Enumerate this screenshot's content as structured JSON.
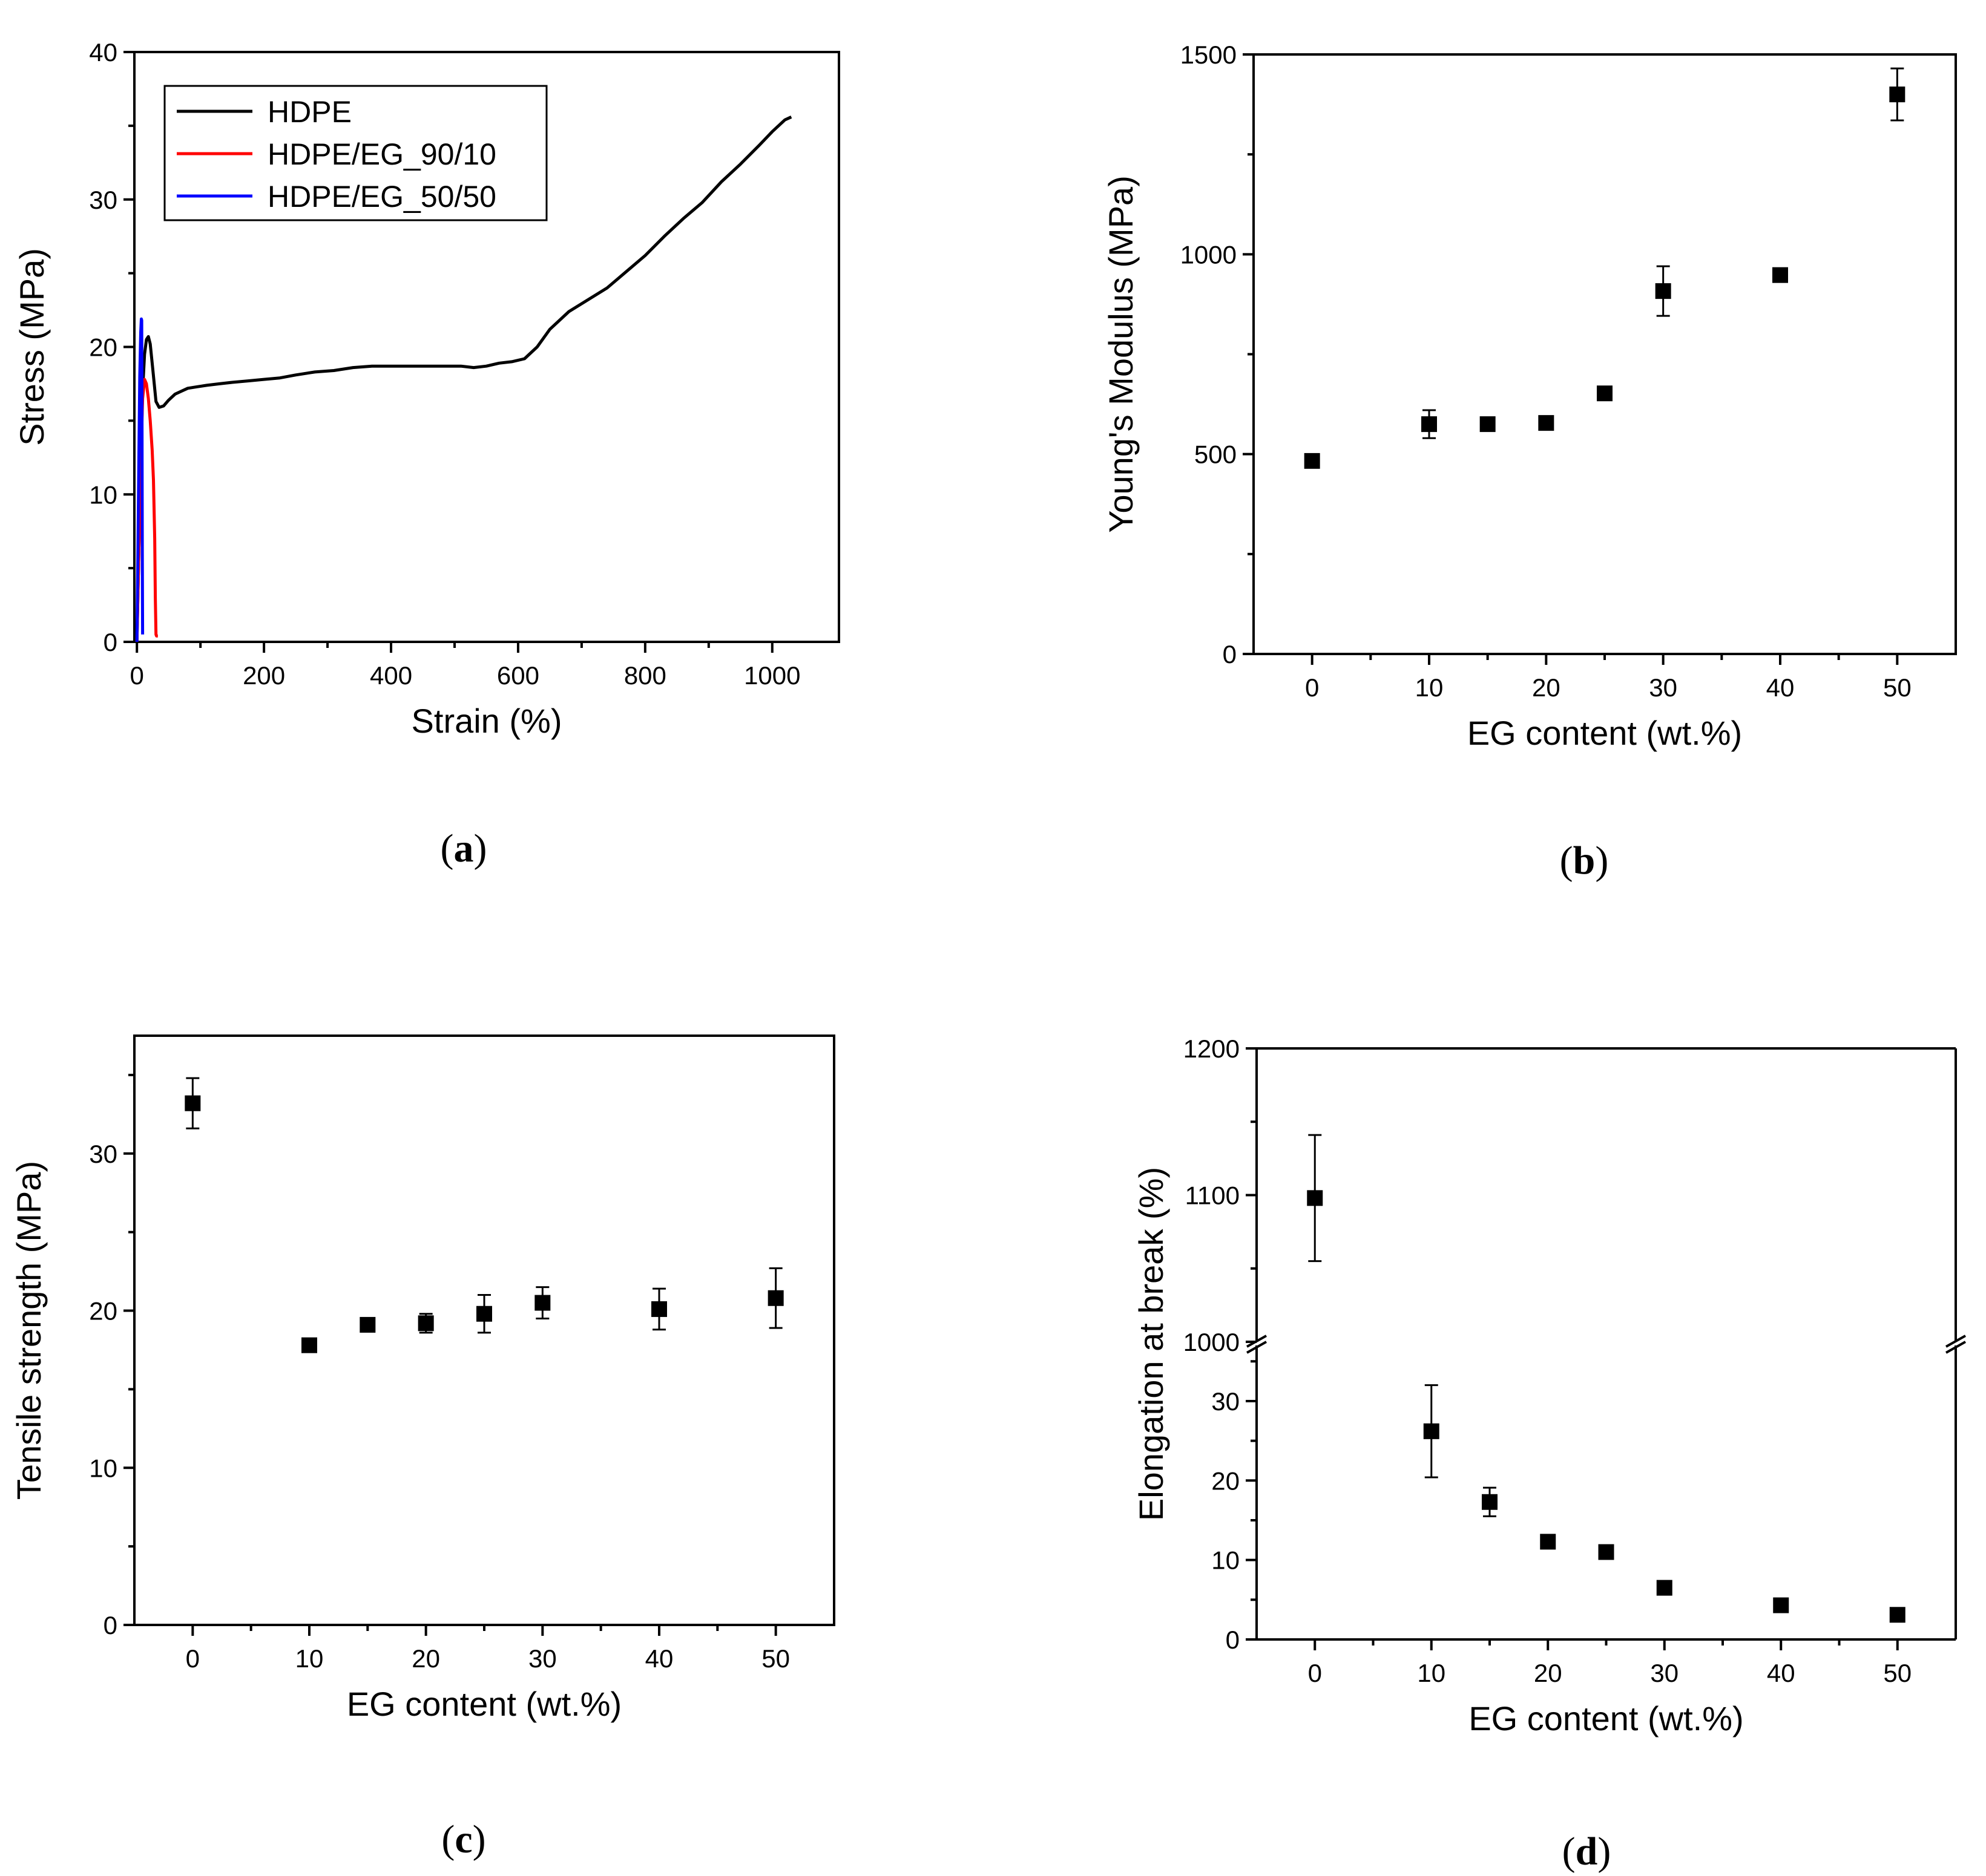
{
  "chart_data": [
    {
      "id": "a",
      "panel_label": "a",
      "type": "line",
      "xlabel": "Strain (%)",
      "ylabel": "Stress (MPa)",
      "xlim": [
        -4,
        1105
      ],
      "ylim": [
        0,
        40
      ],
      "xticks": [
        0,
        200,
        400,
        600,
        800,
        1000
      ],
      "yticks": [
        0,
        10,
        20,
        30,
        40
      ],
      "legend_position": "top-left",
      "series": [
        {
          "name": "HDPE",
          "color": "#000000",
          "x": [
            0,
            3,
            6,
            9,
            12,
            15,
            18,
            21,
            25,
            30,
            35,
            42,
            50,
            60,
            70,
            80,
            95,
            110,
            130,
            150,
            175,
            200,
            225,
            250,
            280,
            310,
            340,
            370,
            400,
            430,
            460,
            490,
            510,
            530,
            550,
            570,
            590,
            610,
            630,
            650,
            680,
            710,
            740,
            770,
            800,
            830,
            860,
            890,
            920,
            950,
            980,
            1000,
            1020,
            1030
          ],
          "y": [
            0,
            6,
            12,
            17,
            19.5,
            20.5,
            20.7,
            20.2,
            18.5,
            16.3,
            15.9,
            16.0,
            16.4,
            16.8,
            17.0,
            17.2,
            17.3,
            17.4,
            17.5,
            17.6,
            17.7,
            17.8,
            17.9,
            18.1,
            18.3,
            18.4,
            18.6,
            18.7,
            18.7,
            18.7,
            18.7,
            18.7,
            18.7,
            18.6,
            18.7,
            18.9,
            19.0,
            19.2,
            20.0,
            21.2,
            22.4,
            23.2,
            24.0,
            25.1,
            26.2,
            27.5,
            28.7,
            29.8,
            31.2,
            32.4,
            33.7,
            34.6,
            35.4,
            35.6
          ]
        },
        {
          "name": "HDPE/EG_90/10",
          "color": "#ff0000",
          "x": [
            0,
            3,
            6,
            9,
            12,
            15,
            18,
            21,
            24,
            26,
            28,
            29,
            30,
            31,
            33
          ],
          "y": [
            0,
            6,
            12,
            16.5,
            17.8,
            17.5,
            16.5,
            15.0,
            13.0,
            11.0,
            7.0,
            3.0,
            0.5,
            0.4,
            0.4
          ]
        },
        {
          "name": "HDPE/EG_50/50",
          "color": "#0000ff",
          "x": [
            0,
            1.5,
            3,
            4.5,
            6,
            7,
            7.5,
            8,
            8.5,
            9
          ],
          "y": [
            0,
            6,
            12,
            18,
            21,
            21.9,
            21.8,
            15,
            6,
            0.5
          ]
        }
      ]
    },
    {
      "id": "b",
      "panel_label": "b",
      "type": "scatter",
      "xlabel": "EG content (wt.%)",
      "ylabel": "Young's Modulus (MPa)",
      "xlim": [
        -5,
        55
      ],
      "ylim": [
        0,
        1500
      ],
      "xticks": [
        0,
        10,
        20,
        30,
        40,
        50
      ],
      "yticks": [
        0,
        500,
        1000,
        1500
      ],
      "minor_yticks": [
        250,
        750,
        1250
      ],
      "points": [
        {
          "x": 0,
          "y": 483,
          "err": 15
        },
        {
          "x": 10,
          "y": 575,
          "err": 35
        },
        {
          "x": 15,
          "y": 575,
          "err": 10
        },
        {
          "x": 20,
          "y": 578,
          "err": 10
        },
        {
          "x": 25,
          "y": 652,
          "err": 10
        },
        {
          "x": 30,
          "y": 908,
          "err": 62
        },
        {
          "x": 40,
          "y": 948,
          "err": 10
        },
        {
          "x": 50,
          "y": 1400,
          "err": 65
        }
      ]
    },
    {
      "id": "c",
      "panel_label": "c",
      "type": "scatter",
      "xlabel": "EG content (wt.%)",
      "ylabel": "Tensile strength (MPa)",
      "xlim": [
        -5,
        55
      ],
      "ylim": [
        0,
        37.5
      ],
      "xticks": [
        0,
        10,
        20,
        30,
        40,
        50
      ],
      "yticks": [
        0,
        10,
        20,
        30
      ],
      "minor_yticks": [
        5,
        15,
        25,
        35
      ],
      "points": [
        {
          "x": 0,
          "y": 33.2,
          "err": 1.6
        },
        {
          "x": 10,
          "y": 17.8,
          "err": 0.3
        },
        {
          "x": 15,
          "y": 19.1,
          "err": 0.3
        },
        {
          "x": 20,
          "y": 19.2,
          "err": 0.6
        },
        {
          "x": 25,
          "y": 19.8,
          "err": 1.2
        },
        {
          "x": 30,
          "y": 20.5,
          "err": 1.0
        },
        {
          "x": 40,
          "y": 20.1,
          "err": 1.3
        },
        {
          "x": 50,
          "y": 20.8,
          "err": 1.9
        }
      ]
    },
    {
      "id": "d",
      "panel_label": "d",
      "type": "scatter",
      "xlabel": "EG content (wt.%)",
      "ylabel": "Elongation at break (%)",
      "xlim": [
        -5,
        55
      ],
      "y_break": true,
      "upper_ylim": [
        1000,
        1200
      ],
      "lower_ylim": [
        0,
        37
      ],
      "upper_yticks": [
        1000,
        1100,
        1200
      ],
      "upper_minor_yticks": [
        1050,
        1150
      ],
      "lower_yticks": [
        0,
        10,
        20,
        30
      ],
      "lower_minor_yticks": [
        5,
        15,
        25,
        35
      ],
      "xticks": [
        0,
        10,
        20,
        30,
        40,
        50
      ],
      "points": [
        {
          "x": 0,
          "y": 1098,
          "err": 43
        },
        {
          "x": 10,
          "y": 26.2,
          "err": 5.8
        },
        {
          "x": 15,
          "y": 17.3,
          "err": 1.8
        },
        {
          "x": 20,
          "y": 12.3,
          "err": 0.8
        },
        {
          "x": 25,
          "y": 11.0,
          "err": 0.6
        },
        {
          "x": 30,
          "y": 6.5,
          "err": 0.3
        },
        {
          "x": 40,
          "y": 4.3,
          "err": 0.3
        },
        {
          "x": 50,
          "y": 3.1,
          "err": 0.2
        }
      ]
    }
  ]
}
